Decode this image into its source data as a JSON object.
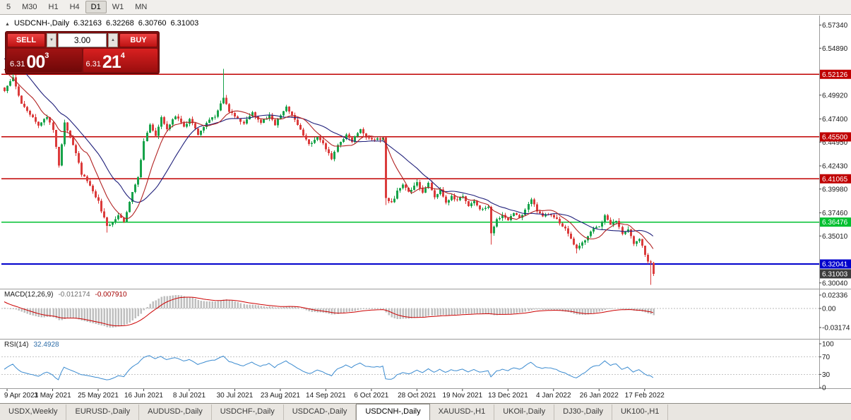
{
  "toolbar": {
    "timeframes": [
      "5",
      "M30",
      "H1",
      "H4",
      "D1",
      "W1",
      "MN"
    ],
    "active": "D1"
  },
  "chart_header": {
    "collapse_icon": "▲",
    "symbol": "USDCNH-,Daily",
    "open": "6.32163",
    "high": "6.32268",
    "low": "6.30760",
    "close": "6.31003"
  },
  "trade_widget": {
    "sell_label": "SELL",
    "buy_label": "BUY",
    "volume": "3.00",
    "decrease_icon": "▼",
    "increase_icon": "▲",
    "sell_price": {
      "prefix": "6.31",
      "big": "00",
      "sup": "3"
    },
    "buy_price": {
      "prefix": "6.31",
      "big": "21",
      "sup": "4"
    }
  },
  "price_axis": {
    "labels": [
      {
        "label": "6.57340",
        "value": 6.5734
      },
      {
        "label": "6.54890",
        "value": 6.5489
      },
      {
        "label": "6.49920",
        "value": 6.4992
      },
      {
        "label": "6.47400",
        "value": 6.474
      },
      {
        "label": "6.44950",
        "value": 6.4495
      },
      {
        "label": "6.42430",
        "value": 6.4243
      },
      {
        "label": "6.39980",
        "value": 6.3998
      },
      {
        "label": "6.37460",
        "value": 6.3746
      },
      {
        "label": "6.35010",
        "value": 6.3501
      },
      {
        "label": "6.30040",
        "value": 6.3004
      }
    ]
  },
  "hlines": [
    {
      "label": "6.52126",
      "price": 6.52126,
      "color": "#C00000",
      "width": 1.4
    },
    {
      "label": "6.45500",
      "price": 6.455,
      "color": "#C00000",
      "width": 1.4
    },
    {
      "label": "6.41065",
      "price": 6.41065,
      "color": "#C00000",
      "width": 1.4
    },
    {
      "label": "6.36476",
      "price": 6.36476,
      "color": "#00C030",
      "width": 1.6
    },
    {
      "label": "6.32041",
      "price": 6.32041,
      "color": "#0000CC",
      "width": 2
    }
  ],
  "current_price": {
    "label": "6.31003",
    "value": 6.31003,
    "box_color": "#3C3C3C"
  },
  "macd": {
    "name": "MACD(12,26,9)",
    "value": "-0.012174",
    "signal_value": "-0.007910",
    "axis_labels": [
      "0.02336",
      "0.00",
      "-0.03174"
    ]
  },
  "rsi": {
    "name": "RSI(14)",
    "value": "32.4928",
    "axis": [
      {
        "label": "100",
        "value": 100
      },
      {
        "label": "70",
        "value": 70
      },
      {
        "label": "30",
        "value": 30
      },
      {
        "label": "0",
        "value": 0
      }
    ],
    "dashed_levels": [
      70,
      30
    ]
  },
  "date_axis": [
    "9 Apr 2021",
    "3 May 2021",
    "25 May 2021",
    "16 Jun 2021",
    "8 Jul 2021",
    "30 Jul 2021",
    "23 Aug 2021",
    "14 Sep 2021",
    "6 Oct 2021",
    "28 Oct 2021",
    "19 Nov 2021",
    "13 Dec 2021",
    "4 Jan 2022",
    "26 Jan 2022",
    "17 Feb 2022"
  ],
  "tabs": {
    "items": [
      {
        "label": "USDX,Weekly",
        "active": false
      },
      {
        "label": "EURUSD-,Daily",
        "active": false
      },
      {
        "label": "AUDUSD-,Daily",
        "active": false
      },
      {
        "label": "USDCHF-,Daily",
        "active": false
      },
      {
        "label": "USDCAD-,Daily",
        "active": false
      },
      {
        "label": "USDCNH-,Daily",
        "active": true
      },
      {
        "label": "XAUUSD-,H1",
        "active": false
      },
      {
        "label": "UKOil-,Daily",
        "active": false
      },
      {
        "label": "DJ30-,Daily",
        "active": false
      },
      {
        "label": "UK100-,H1",
        "active": false
      }
    ]
  },
  "chart_data": {
    "type": "candlestick",
    "symbol": "USDCNH-",
    "timeframe": "Daily",
    "current_bar": {
      "open": 6.32163,
      "high": 6.32268,
      "low": 6.3076,
      "close": 6.31003
    },
    "price_range_visible": [
      6.295,
      6.5835
    ],
    "bars_visible": 229,
    "ma_fast_period": 10,
    "ma_slow_period": 21,
    "macd_params": [
      12,
      26,
      9
    ],
    "macd_current": -0.012174,
    "macd_signal_current": -0.00791,
    "macd_axis_range": [
      -0.03174,
      0.02336
    ],
    "rsi_period": 14,
    "rsi_current": 32.4928,
    "noise_seed": 42,
    "noise_amp": 0.0014,
    "wick_amp": 0.0032,
    "date_label_bars": [
      1,
      17,
      33,
      49,
      65,
      81,
      97,
      113,
      129,
      145,
      161,
      177,
      193,
      209,
      225
    ],
    "warmup_anchors": [
      [
        -30,
        6.47
      ],
      [
        -22,
        6.52
      ],
      [
        -14,
        6.558
      ],
      [
        -7,
        6.545
      ],
      [
        -3,
        6.515
      ]
    ],
    "close_anchors": [
      [
        0,
        6.505
      ],
      [
        3,
        6.517
      ],
      [
        6,
        6.49
      ],
      [
        9,
        6.478
      ],
      [
        12,
        6.468
      ],
      [
        15,
        6.477
      ],
      [
        17,
        6.462
      ],
      [
        19,
        6.425
      ],
      [
        21,
        6.471
      ],
      [
        24,
        6.447
      ],
      [
        27,
        6.416
      ],
      [
        30,
        6.404
      ],
      [
        33,
        6.386
      ],
      [
        36,
        6.36
      ],
      [
        38,
        6.364
      ],
      [
        40,
        6.373
      ],
      [
        42,
        6.366
      ],
      [
        45,
        6.396
      ],
      [
        47,
        6.413
      ],
      [
        49,
        6.45
      ],
      [
        51,
        6.467
      ],
      [
        53,
        6.455
      ],
      [
        55,
        6.477
      ],
      [
        57,
        6.463
      ],
      [
        60,
        6.477
      ],
      [
        63,
        6.467
      ],
      [
        65,
        6.473
      ],
      [
        68,
        6.458
      ],
      [
        71,
        6.47
      ],
      [
        74,
        6.477
      ],
      [
        77,
        6.497
      ],
      [
        79,
        6.483
      ],
      [
        81,
        6.477
      ],
      [
        84,
        6.469
      ],
      [
        87,
        6.481
      ],
      [
        90,
        6.47
      ],
      [
        93,
        6.477
      ],
      [
        95,
        6.467
      ],
      [
        97,
        6.479
      ],
      [
        99,
        6.487
      ],
      [
        102,
        6.472
      ],
      [
        105,
        6.457
      ],
      [
        107,
        6.447
      ],
      [
        110,
        6.455
      ],
      [
        113,
        6.443
      ],
      [
        115,
        6.432
      ],
      [
        117,
        6.446
      ],
      [
        120,
        6.457
      ],
      [
        122,
        6.451
      ],
      [
        125,
        6.462
      ],
      [
        127,
        6.454
      ],
      [
        129,
        6.451
      ],
      [
        133,
        6.454
      ],
      [
        134,
        6.39
      ],
      [
        136,
        6.385
      ],
      [
        138,
        6.397
      ],
      [
        140,
        6.405
      ],
      [
        142,
        6.397
      ],
      [
        145,
        6.407
      ],
      [
        147,
        6.397
      ],
      [
        149,
        6.407
      ],
      [
        151,
        6.391
      ],
      [
        153,
        6.398
      ],
      [
        155,
        6.385
      ],
      [
        157,
        6.392
      ],
      [
        159,
        6.387
      ],
      [
        161,
        6.392
      ],
      [
        163,
        6.381
      ],
      [
        165,
        6.388
      ],
      [
        167,
        6.379
      ],
      [
        170,
        6.381
      ],
      [
        171,
        6.352
      ],
      [
        173,
        6.367
      ],
      [
        175,
        6.372
      ],
      [
        177,
        6.367
      ],
      [
        179,
        6.374
      ],
      [
        181,
        6.369
      ],
      [
        183,
        6.377
      ],
      [
        185,
        6.388
      ],
      [
        187,
        6.377
      ],
      [
        189,
        6.371
      ],
      [
        191,
        6.374
      ],
      [
        193,
        6.371
      ],
      [
        195,
        6.364
      ],
      [
        197,
        6.357
      ],
      [
        199,
        6.347
      ],
      [
        201,
        6.337
      ],
      [
        203,
        6.342
      ],
      [
        205,
        6.351
      ],
      [
        207,
        6.357
      ],
      [
        209,
        6.361
      ],
      [
        211,
        6.371
      ],
      [
        213,
        6.361
      ],
      [
        215,
        6.367
      ],
      [
        217,
        6.351
      ],
      [
        219,
        6.357
      ],
      [
        221,
        6.341
      ],
      [
        223,
        6.347
      ],
      [
        225,
        6.331
      ],
      [
        226,
        6.323
      ],
      [
        227,
        6.3216
      ],
      [
        228,
        6.31003
      ]
    ],
    "spikes": [
      {
        "bar": 3,
        "high": 6.5245
      },
      {
        "bar": 36,
        "low": 6.3535
      },
      {
        "bar": 77,
        "high": 6.527
      },
      {
        "bar": 134,
        "low": 6.383
      },
      {
        "bar": 171,
        "low": 6.341
      },
      {
        "bar": 201,
        "low": 6.3315
      },
      {
        "bar": 227,
        "low": 6.2985
      }
    ],
    "colors": {
      "candle_up": "#17A34A",
      "candle_down": "#DB3B3B",
      "ma_fast": "#B22222",
      "ma_slow": "#1F1F7A",
      "macd_histogram": "#BFBFBF",
      "macd_signal": "#CC0000",
      "rsi_line": "#3B8BD0"
    }
  }
}
